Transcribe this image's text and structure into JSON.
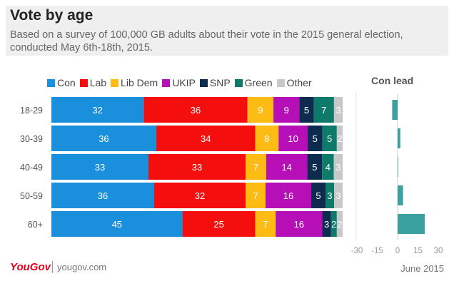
{
  "header": {
    "title": "Vote by age",
    "subtitle": "Based on a survey of 100,000 GB adults about their vote in the 2015 general election, conducted May 6th-18th, 2015."
  },
  "footer": {
    "logo": "YouGov",
    "site": "yougov.com",
    "date": "June 2015"
  },
  "colors": {
    "Con": "#1a8fdc",
    "Lab": "#f50e0e",
    "Lib Dem": "#fdbb14",
    "UKIP": "#b70fb7",
    "SNP": "#0d2b4e",
    "Green": "#0e7a6a",
    "Other": "#c8c8c8",
    "lead": "#3aa0a0"
  },
  "chart_data": [
    {
      "type": "bar",
      "stacked": true,
      "orientation": "horizontal",
      "title": "Vote by age",
      "categories": [
        "18-29",
        "30-39",
        "40-49",
        "50-59",
        "60+"
      ],
      "series": [
        {
          "name": "Con",
          "values": [
            32,
            36,
            33,
            36,
            45
          ]
        },
        {
          "name": "Lab",
          "values": [
            36,
            34,
            33,
            32,
            25
          ]
        },
        {
          "name": "Lib Dem",
          "values": [
            9,
            8,
            7,
            7,
            7
          ]
        },
        {
          "name": "UKIP",
          "values": [
            9,
            10,
            14,
            16,
            16
          ]
        },
        {
          "name": "SNP",
          "values": [
            5,
            5,
            5,
            5,
            3
          ]
        },
        {
          "name": "Green",
          "values": [
            7,
            5,
            4,
            3,
            2
          ]
        },
        {
          "name": "Other",
          "values": [
            3,
            2,
            3,
            3,
            2
          ]
        }
      ],
      "legend": "top-left"
    },
    {
      "type": "bar",
      "orientation": "horizontal",
      "title": "Con lead",
      "categories": [
        "18-29",
        "30-39",
        "40-49",
        "50-59",
        "60+"
      ],
      "values": [
        -4,
        2,
        0,
        4,
        20
      ],
      "xlim": [
        -30,
        30
      ],
      "xticks": [
        "-30",
        "-15",
        "0",
        "15",
        "30"
      ]
    }
  ]
}
